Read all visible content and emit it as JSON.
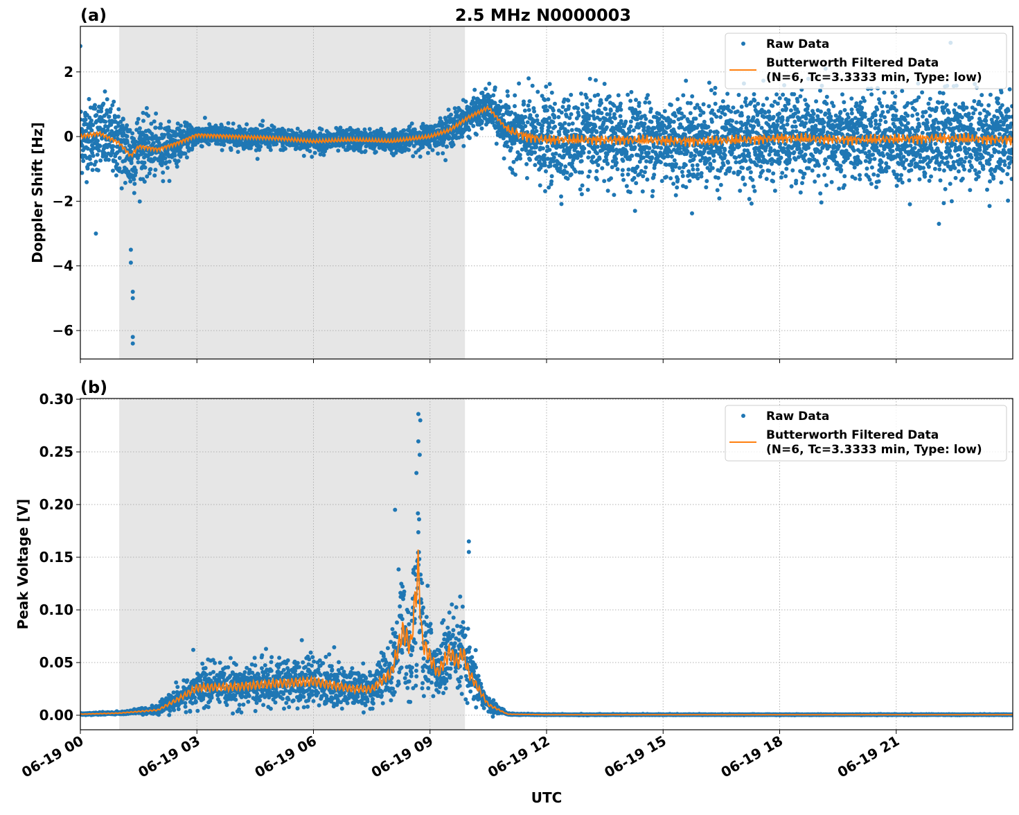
{
  "figure_title": "2.5 MHz N0000003",
  "chart_data": [
    {
      "type": "scatter",
      "panel_label": "(a)",
      "title": "2.5 MHz N0000003",
      "xlabel": "",
      "ylabel": "Doppler Shift [Hz]",
      "x_unit": "hours UTC on 06-19",
      "xlim": [
        0,
        24
      ],
      "ylim": [
        -6.88,
        3.41
      ],
      "yticks": [
        -6,
        -4,
        -2,
        0,
        2
      ],
      "ytick_labels": [
        "−6",
        "−4",
        "−2",
        "0",
        "2"
      ],
      "grid": true,
      "legend_placement": "top-right",
      "shaded_interval_hours": [
        1.0,
        9.9
      ],
      "series": [
        {
          "name": "Raw Data",
          "kind": "points",
          "color": "#1f77b4",
          "approx_center_hours": [
            0,
            0.5,
            1,
            1.3,
            1.5,
            2,
            2.5,
            3,
            4,
            5,
            6,
            7,
            8,
            9,
            9.5,
            10,
            10.5,
            11,
            11.5,
            12,
            14,
            16,
            18,
            20,
            22,
            24
          ],
          "approx_center": [
            0,
            0.1,
            -0.2,
            -0.6,
            -0.3,
            -0.4,
            -0.2,
            0.05,
            0,
            -0.05,
            -0.15,
            -0.1,
            -0.15,
            0,
            0.2,
            0.6,
            0.9,
            0.2,
            0,
            -0.1,
            -0.1,
            -0.15,
            -0.05,
            -0.1,
            -0.05,
            -0.1
          ],
          "approx_spread": [
            1.0,
            1.0,
            1.0,
            1.2,
            0.9,
            0.7,
            0.5,
            0.3,
            0.3,
            0.3,
            0.3,
            0.3,
            0.3,
            0.35,
            0.45,
            0.5,
            0.5,
            0.8,
            1.1,
            1.2,
            1.2,
            1.2,
            1.2,
            1.2,
            1.2,
            1.2
          ],
          "outliers": [
            [
              1.35,
              -6.4
            ],
            [
              1.35,
              -6.2
            ],
            [
              1.35,
              -5.0
            ],
            [
              1.35,
              -4.8
            ],
            [
              1.3,
              -3.9
            ],
            [
              1.3,
              -3.5
            ],
            [
              0.0,
              2.8
            ],
            [
              0.4,
              -3.0
            ],
            [
              22.4,
              2.9
            ],
            [
              22.1,
              -2.7
            ]
          ]
        },
        {
          "name": "Butterworth Filtered Data\n(N=6, Tc=3.3333 min, Type: low)",
          "kind": "line",
          "color": "#ff7f0e"
        }
      ]
    },
    {
      "type": "scatter",
      "panel_label": "(b)",
      "xlabel": "UTC",
      "ylabel": "Peak Voltage [V]",
      "xlim": [
        0,
        24
      ],
      "ylim": [
        -0.0138,
        0.3007
      ],
      "yticks": [
        0,
        0.05,
        0.1,
        0.15,
        0.2,
        0.25,
        0.3
      ],
      "ytick_labels": [
        "0.00",
        "0.05",
        "0.10",
        "0.15",
        "0.20",
        "0.25",
        "0.30"
      ],
      "xticks": [
        0,
        3,
        6,
        9,
        12,
        15,
        18,
        21
      ],
      "xtick_labels": [
        "06-19 00",
        "06-19 03",
        "06-19 06",
        "06-19 09",
        "06-19 12",
        "06-19 15",
        "06-19 18",
        "06-19 21"
      ],
      "grid": true,
      "legend_placement": "top-right",
      "shaded_interval_hours": [
        1.0,
        9.9
      ],
      "series": [
        {
          "name": "Raw Data",
          "kind": "points",
          "color": "#1f77b4",
          "approx_center_hours": [
            0,
            1,
            2,
            2.5,
            3,
            4,
            5,
            6,
            7,
            7.5,
            8,
            8.3,
            8.5,
            8.7,
            8.8,
            9,
            9.2,
            9.5,
            9.7,
            9.85,
            10,
            10.5,
            11,
            12,
            24
          ],
          "approx_center": [
            0.001,
            0.002,
            0.005,
            0.015,
            0.026,
            0.027,
            0.03,
            0.032,
            0.025,
            0.025,
            0.04,
            0.08,
            0.065,
            0.14,
            0.07,
            0.055,
            0.04,
            0.06,
            0.05,
            0.06,
            0.04,
            0.01,
            0.001,
            0.0005,
            0.0005
          ],
          "outliers": [
            [
              8.7,
              0.286
            ],
            [
              8.75,
              0.28
            ],
            [
              8.7,
              0.26
            ],
            [
              8.1,
              0.195
            ],
            [
              10.0,
              0.165
            ],
            [
              10.0,
              0.155
            ],
            [
              8.65,
              0.23
            ]
          ]
        },
        {
          "name": "Butterworth Filtered Data\n(N=6, Tc=3.3333 min, Type: low)",
          "kind": "line",
          "color": "#ff7f0e"
        }
      ]
    }
  ],
  "legend": {
    "raw": "Raw Data",
    "filtered_1": "Butterworth Filtered Data",
    "filtered_2": "(N=6, Tc=3.3333 min, Type: low)"
  },
  "colors": {
    "raw": "#1f77b4",
    "filtered": "#ff7f0e",
    "shade": "#e6e6e6"
  }
}
